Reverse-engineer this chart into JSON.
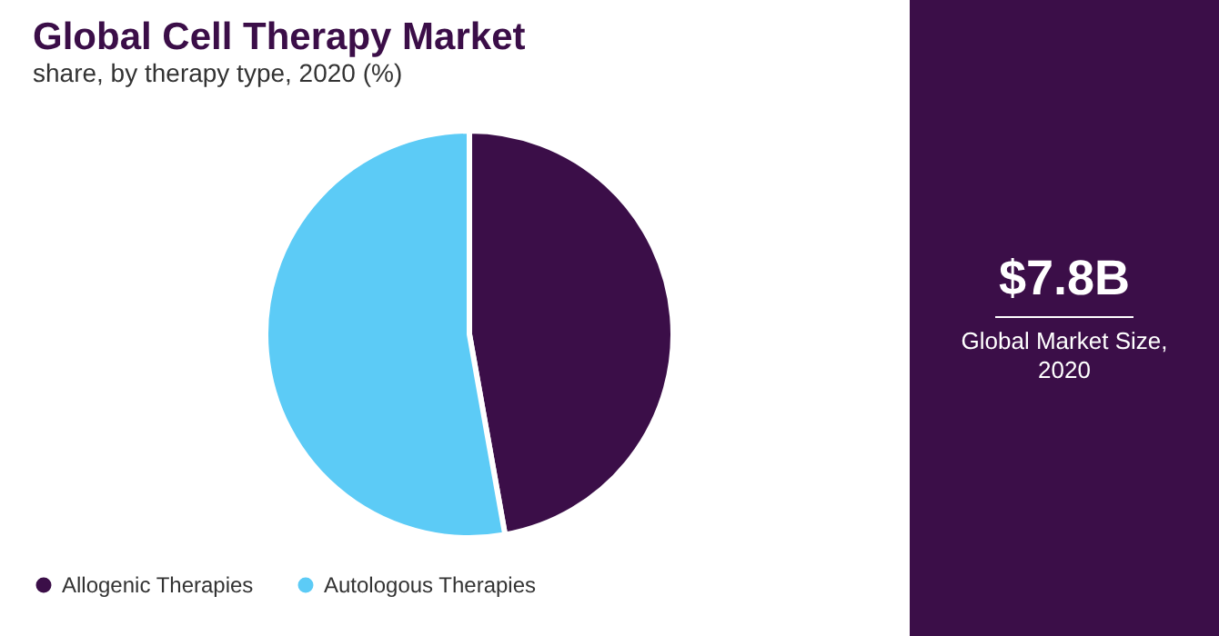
{
  "chart_data": {
    "type": "pie",
    "title": "Global Cell Therapy Market",
    "subtitle": "share, by therapy type, 2020 (%)",
    "categories": [
      "Allogenic Therapies",
      "Autologous Therapies"
    ],
    "values": [
      47.2,
      52.8
    ],
    "colors": [
      "#3b0e48",
      "#5ccbf6"
    ],
    "legend": "bottom",
    "annotations": [
      "$7.8B",
      "Global Market Size, 2020"
    ]
  }
}
